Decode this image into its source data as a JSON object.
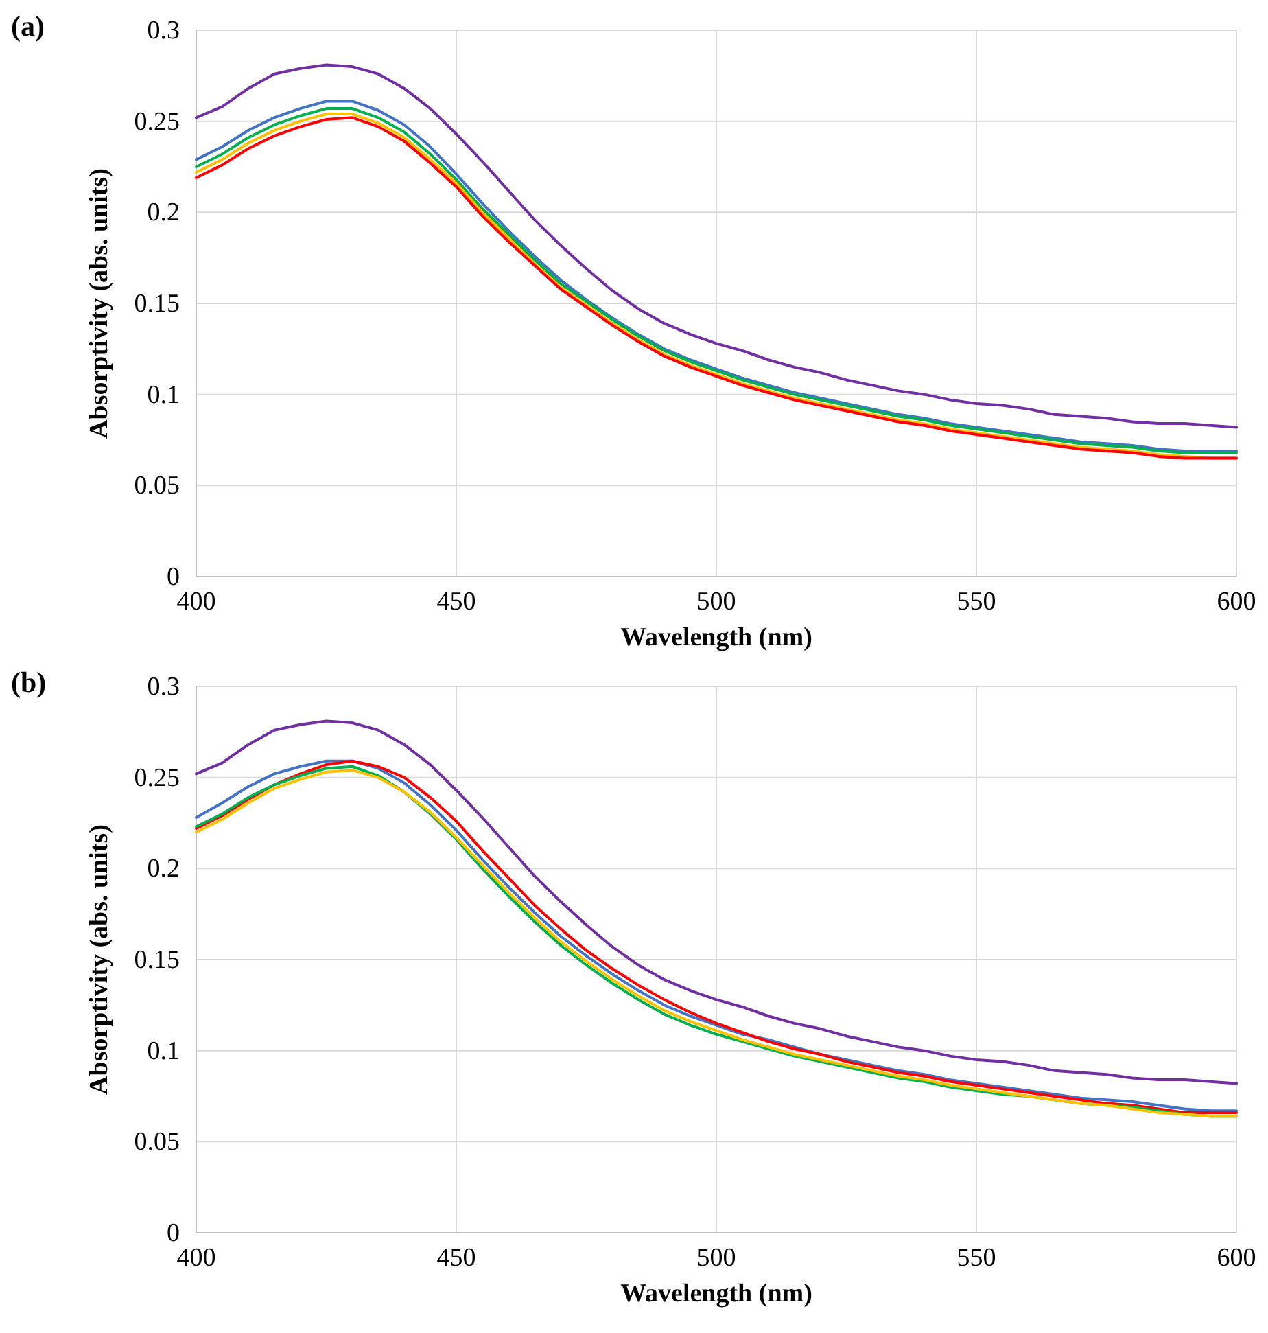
{
  "chart_data": [
    {
      "type": "line",
      "title": "(a)",
      "xlabel": "Wavelength (nm)",
      "ylabel": "Absorptivity (abs. units)",
      "xlim": [
        400,
        600
      ],
      "xticks": [
        400,
        450,
        500,
        550,
        600
      ],
      "ylim": [
        0,
        0.3
      ],
      "yticks": [
        0,
        0.05,
        0.1,
        0.15,
        0.2,
        0.25,
        0.3
      ],
      "grid": true,
      "marker": "none",
      "line_style": "solid",
      "x": [
        400,
        405,
        410,
        415,
        420,
        425,
        430,
        435,
        440,
        445,
        450,
        455,
        460,
        465,
        470,
        475,
        480,
        485,
        490,
        495,
        500,
        505,
        510,
        515,
        520,
        525,
        530,
        535,
        540,
        545,
        550,
        555,
        560,
        565,
        570,
        575,
        580,
        585,
        590,
        595,
        600
      ],
      "series": [
        {
          "color": "#7030a0",
          "values": [
            0.252,
            0.258,
            0.268,
            0.276,
            0.279,
            0.281,
            0.28,
            0.276,
            0.268,
            0.257,
            0.243,
            0.228,
            0.212,
            0.196,
            0.182,
            0.169,
            0.157,
            0.147,
            0.139,
            0.133,
            0.128,
            0.124,
            0.119,
            0.115,
            0.112,
            0.108,
            0.105,
            0.102,
            0.1,
            0.097,
            0.095,
            0.094,
            0.092,
            0.089,
            0.088,
            0.087,
            0.085,
            0.084,
            0.084,
            0.083,
            0.082
          ]
        },
        {
          "color": "#4472c4",
          "values": [
            0.229,
            0.236,
            0.245,
            0.252,
            0.257,
            0.261,
            0.261,
            0.256,
            0.248,
            0.236,
            0.221,
            0.205,
            0.19,
            0.176,
            0.163,
            0.152,
            0.142,
            0.133,
            0.125,
            0.119,
            0.114,
            0.109,
            0.105,
            0.101,
            0.098,
            0.095,
            0.092,
            0.089,
            0.087,
            0.084,
            0.082,
            0.08,
            0.078,
            0.076,
            0.074,
            0.073,
            0.072,
            0.07,
            0.069,
            0.069,
            0.069
          ]
        },
        {
          "color": "#00b050",
          "values": [
            0.225,
            0.232,
            0.241,
            0.248,
            0.253,
            0.257,
            0.257,
            0.252,
            0.244,
            0.232,
            0.218,
            0.202,
            0.188,
            0.174,
            0.161,
            0.151,
            0.141,
            0.132,
            0.124,
            0.118,
            0.113,
            0.108,
            0.104,
            0.1,
            0.097,
            0.094,
            0.091,
            0.088,
            0.086,
            0.083,
            0.081,
            0.079,
            0.077,
            0.075,
            0.073,
            0.072,
            0.071,
            0.069,
            0.068,
            0.068,
            0.068
          ]
        },
        {
          "color": "#ffc000",
          "values": [
            0.222,
            0.229,
            0.238,
            0.245,
            0.25,
            0.254,
            0.254,
            0.249,
            0.241,
            0.229,
            0.216,
            0.2,
            0.186,
            0.172,
            0.159,
            0.149,
            0.139,
            0.13,
            0.122,
            0.116,
            0.111,
            0.106,
            0.102,
            0.098,
            0.095,
            0.092,
            0.089,
            0.086,
            0.084,
            0.081,
            0.079,
            0.077,
            0.075,
            0.073,
            0.071,
            0.07,
            0.069,
            0.067,
            0.066,
            0.065,
            0.065
          ]
        },
        {
          "color": "#ff0000",
          "values": [
            0.219,
            0.226,
            0.235,
            0.242,
            0.247,
            0.251,
            0.252,
            0.247,
            0.239,
            0.227,
            0.214,
            0.198,
            0.184,
            0.171,
            0.158,
            0.148,
            0.138,
            0.129,
            0.121,
            0.115,
            0.11,
            0.105,
            0.101,
            0.097,
            0.094,
            0.091,
            0.088,
            0.085,
            0.083,
            0.08,
            0.078,
            0.076,
            0.074,
            0.072,
            0.07,
            0.069,
            0.068,
            0.066,
            0.065,
            0.065,
            0.065
          ]
        }
      ]
    },
    {
      "type": "line",
      "title": "(b)",
      "xlabel": "Wavelength (nm)",
      "ylabel": "Absorptivity (abs. units)",
      "xlim": [
        400,
        600
      ],
      "xticks": [
        400,
        450,
        500,
        550,
        600
      ],
      "ylim": [
        0,
        0.3
      ],
      "yticks": [
        0,
        0.05,
        0.1,
        0.15,
        0.2,
        0.25,
        0.3
      ],
      "grid": true,
      "marker": "none",
      "line_style": "solid",
      "x": [
        400,
        405,
        410,
        415,
        420,
        425,
        430,
        435,
        440,
        445,
        450,
        455,
        460,
        465,
        470,
        475,
        480,
        485,
        490,
        495,
        500,
        505,
        510,
        515,
        520,
        525,
        530,
        535,
        540,
        545,
        550,
        555,
        560,
        565,
        570,
        575,
        580,
        585,
        590,
        595,
        600
      ],
      "series": [
        {
          "color": "#7030a0",
          "values": [
            0.252,
            0.258,
            0.268,
            0.276,
            0.279,
            0.281,
            0.28,
            0.276,
            0.268,
            0.257,
            0.243,
            0.228,
            0.212,
            0.196,
            0.182,
            0.169,
            0.157,
            0.147,
            0.139,
            0.133,
            0.128,
            0.124,
            0.119,
            0.115,
            0.112,
            0.108,
            0.105,
            0.102,
            0.1,
            0.097,
            0.095,
            0.094,
            0.092,
            0.089,
            0.088,
            0.087,
            0.085,
            0.084,
            0.084,
            0.083,
            0.082
          ]
        },
        {
          "color": "#4472c4",
          "values": [
            0.228,
            0.236,
            0.245,
            0.252,
            0.256,
            0.259,
            0.259,
            0.255,
            0.247,
            0.235,
            0.221,
            0.205,
            0.19,
            0.176,
            0.163,
            0.152,
            0.142,
            0.133,
            0.125,
            0.119,
            0.114,
            0.109,
            0.106,
            0.102,
            0.098,
            0.095,
            0.092,
            0.089,
            0.087,
            0.084,
            0.082,
            0.08,
            0.078,
            0.076,
            0.074,
            0.073,
            0.072,
            0.07,
            0.068,
            0.067,
            0.067
          ]
        },
        {
          "color": "#ff0000",
          "values": [
            0.222,
            0.229,
            0.238,
            0.246,
            0.252,
            0.257,
            0.259,
            0.256,
            0.25,
            0.239,
            0.226,
            0.21,
            0.195,
            0.18,
            0.167,
            0.155,
            0.145,
            0.136,
            0.128,
            0.121,
            0.115,
            0.11,
            0.105,
            0.101,
            0.098,
            0.094,
            0.091,
            0.088,
            0.086,
            0.083,
            0.081,
            0.079,
            0.077,
            0.075,
            0.073,
            0.071,
            0.07,
            0.068,
            0.066,
            0.066,
            0.066
          ]
        },
        {
          "color": "#00b050",
          "values": [
            0.223,
            0.23,
            0.239,
            0.246,
            0.251,
            0.255,
            0.256,
            0.251,
            0.242,
            0.23,
            0.216,
            0.2,
            0.185,
            0.171,
            0.158,
            0.147,
            0.137,
            0.128,
            0.12,
            0.114,
            0.109,
            0.105,
            0.101,
            0.097,
            0.094,
            0.091,
            0.088,
            0.085,
            0.083,
            0.08,
            0.078,
            0.076,
            0.075,
            0.073,
            0.071,
            0.07,
            0.069,
            0.067,
            0.065,
            0.064,
            0.064
          ]
        },
        {
          "color": "#ffc000",
          "values": [
            0.22,
            0.227,
            0.236,
            0.244,
            0.249,
            0.253,
            0.254,
            0.25,
            0.242,
            0.231,
            0.217,
            0.202,
            0.187,
            0.173,
            0.16,
            0.149,
            0.139,
            0.13,
            0.122,
            0.116,
            0.111,
            0.106,
            0.102,
            0.098,
            0.095,
            0.092,
            0.089,
            0.086,
            0.084,
            0.081,
            0.079,
            0.077,
            0.075,
            0.073,
            0.071,
            0.07,
            0.068,
            0.066,
            0.065,
            0.064,
            0.064
          ]
        }
      ]
    }
  ]
}
